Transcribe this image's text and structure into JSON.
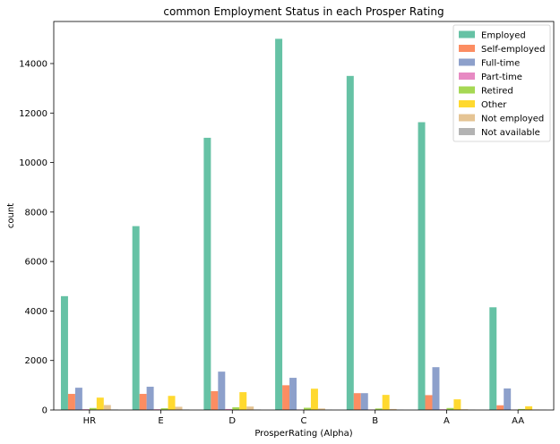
{
  "chart_data": {
    "type": "bar",
    "title": "common Employment Status in each Prosper Rating",
    "xlabel": "ProsperRating (Alpha)",
    "ylabel": "count",
    "ylim": [
      0,
      15700
    ],
    "yticks": [
      0,
      2000,
      4000,
      6000,
      8000,
      10000,
      12000,
      14000
    ],
    "grid": false,
    "legend_position": "top-right",
    "categories": [
      "HR",
      "E",
      "D",
      "C",
      "B",
      "A",
      "AA"
    ],
    "series": [
      {
        "name": "Employed",
        "color": "#66c2a5",
        "values": [
          4600,
          7430,
          11000,
          15000,
          13500,
          11630,
          4150
        ]
      },
      {
        "name": "Self-employed",
        "color": "#fc8d62",
        "values": [
          650,
          650,
          760,
          1000,
          680,
          600,
          190
        ]
      },
      {
        "name": "Full-time",
        "color": "#8da0cb",
        "values": [
          900,
          940,
          1550,
          1300,
          680,
          1730,
          870
        ]
      },
      {
        "name": "Part-time",
        "color": "#e78ac3",
        "values": [
          30,
          30,
          40,
          20,
          20,
          30,
          10
        ]
      },
      {
        "name": "Retired",
        "color": "#a6d854",
        "values": [
          80,
          70,
          110,
          90,
          60,
          80,
          40
        ]
      },
      {
        "name": "Other",
        "color": "#ffd92f",
        "values": [
          500,
          570,
          720,
          860,
          610,
          430,
          150
        ]
      },
      {
        "name": "Not employed",
        "color": "#e5c494",
        "values": [
          200,
          130,
          140,
          60,
          40,
          30,
          20
        ]
      },
      {
        "name": "Not available",
        "color": "#b3b3b3",
        "values": [
          20,
          20,
          20,
          10,
          10,
          10,
          10
        ]
      }
    ]
  }
}
